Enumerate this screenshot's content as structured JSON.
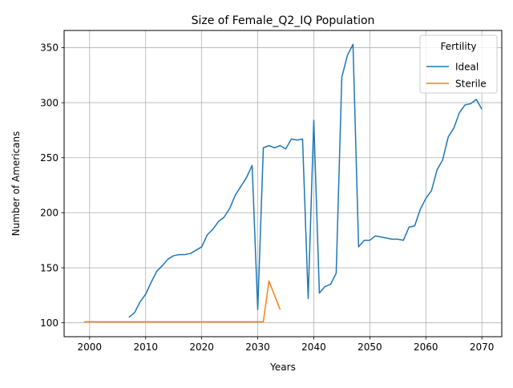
{
  "chart_data": {
    "type": "line",
    "title": "Size of Female_Q2_IQ Population",
    "xlabel": "Years",
    "ylabel": "Number of Americans",
    "xlim": [
      1995.45,
      2073.55
    ],
    "ylim": [
      87.4,
      365.6
    ],
    "xticks": [
      2000,
      2010,
      2020,
      2030,
      2040,
      2050,
      2060,
      2070
    ],
    "yticks": [
      100,
      150,
      200,
      250,
      300,
      350
    ],
    "grid": true,
    "legend": {
      "title": "Fertility",
      "placement": "top-right"
    },
    "series": [
      {
        "name": "Ideal",
        "color": "#1f77b4",
        "x": [
          2007,
          2008,
          2009,
          2010,
          2011,
          2012,
          2013,
          2014,
          2015,
          2016,
          2017,
          2018,
          2019,
          2020,
          2021,
          2022,
          2023,
          2024,
          2025,
          2026,
          2027,
          2028,
          2029,
          2030,
          2031,
          2032,
          2033,
          2034,
          2035,
          2036,
          2037,
          2038,
          2039,
          2040,
          2041,
          2042,
          2043,
          2044,
          2045,
          2046,
          2047,
          2048,
          2049,
          2050,
          2051,
          2052,
          2053,
          2054,
          2055,
          2056,
          2057,
          2058,
          2059,
          2060,
          2061,
          2062,
          2063,
          2064,
          2065,
          2066,
          2067,
          2068,
          2069,
          2070
        ],
        "values": [
          105,
          109,
          119,
          126,
          137,
          147,
          152,
          158,
          161,
          162,
          162,
          163,
          166,
          169,
          180,
          185,
          192,
          196,
          204,
          216,
          224,
          232,
          243,
          112,
          259,
          261,
          259,
          261,
          258,
          267,
          266,
          267,
          122,
          284,
          127,
          133,
          135,
          145,
          323,
          343,
          353,
          169,
          175,
          175,
          179,
          178,
          177,
          176,
          176,
          175,
          187,
          188,
          203,
          213,
          220,
          239,
          248,
          269,
          277,
          291,
          298,
          299,
          303,
          294
        ]
      },
      {
        "name": "Sterile",
        "color": "#ff7f0e",
        "x": [
          1999,
          2000,
          2001,
          2002,
          2003,
          2004,
          2005,
          2006,
          2007,
          2008,
          2009,
          2010,
          2011,
          2012,
          2013,
          2014,
          2015,
          2016,
          2017,
          2018,
          2019,
          2020,
          2021,
          2022,
          2023,
          2024,
          2025,
          2026,
          2027,
          2028,
          2029,
          2030,
          2031,
          2032,
          2033,
          2034
        ],
        "values": [
          101,
          101,
          101,
          101,
          101,
          101,
          101,
          101,
          101,
          101,
          101,
          101,
          101,
          101,
          101,
          101,
          101,
          101,
          101,
          101,
          101,
          101,
          101,
          101,
          101,
          101,
          101,
          101,
          101,
          101,
          101,
          101,
          101,
          138,
          125,
          112
        ]
      }
    ]
  }
}
